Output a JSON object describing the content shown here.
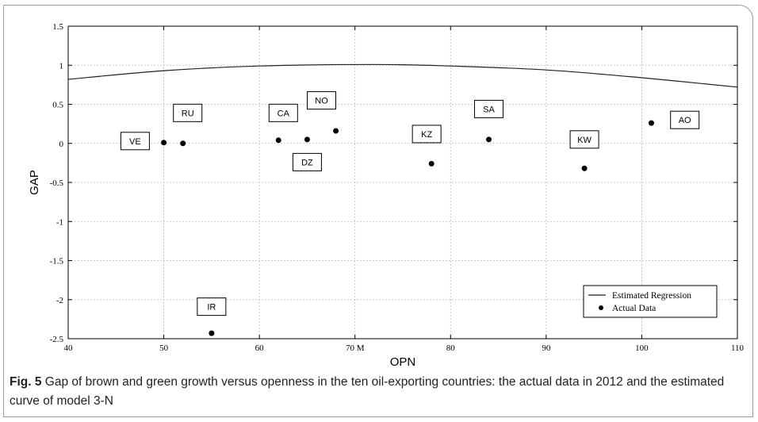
{
  "chart_data": {
    "type": "scatter",
    "xlabel": "OPN",
    "ylabel": "GAP",
    "xlim": [
      40,
      110
    ],
    "ylim": [
      -2.5,
      1.5
    ],
    "x_ticks": [
      40,
      50,
      60,
      70,
      80,
      90,
      100,
      110
    ],
    "y_ticks": [
      1.5,
      1,
      0.5,
      0,
      -0.5,
      -1,
      -1.5,
      -2,
      -2.5
    ],
    "x_tick_labels": [
      "40",
      "50",
      "60",
      "70 M",
      "80",
      "90",
      "100",
      "110"
    ],
    "y_tick_labels": [
      "1.5",
      "1",
      "0.5",
      "0",
      "-0.5",
      "-1",
      "-1.5",
      "-2",
      "-2.5"
    ],
    "grid": true,
    "legend": {
      "placement": "bottom-right",
      "entries": [
        "Estimated Regression",
        "Actual Data"
      ]
    },
    "series": [
      {
        "name": "Estimated Regression",
        "style": "line",
        "x": [
          40,
          50,
          60,
          72,
          80,
          90,
          100,
          110
        ],
        "y": [
          0.82,
          0.93,
          0.99,
          1.01,
          0.99,
          0.94,
          0.84,
          0.72
        ]
      },
      {
        "name": "Actual Data",
        "style": "points",
        "points": [
          {
            "label": "VE",
            "x": 50,
            "y": 0.01,
            "label_x": 47,
            "label_y": 0.03
          },
          {
            "label": "RU",
            "x": 52,
            "y": 0.0,
            "label_x": 52.5,
            "label_y": 0.39
          },
          {
            "label": "IR",
            "x": 55,
            "y": -2.43,
            "label_x": 55,
            "label_y": -2.09
          },
          {
            "label": "CA",
            "x": 62,
            "y": 0.04,
            "label_x": 62.5,
            "label_y": 0.39
          },
          {
            "label": "DZ",
            "x": 65,
            "y": 0.05,
            "label_x": 65,
            "label_y": -0.24
          },
          {
            "label": "NO",
            "x": 68,
            "y": 0.16,
            "label_x": 66.5,
            "label_y": 0.55
          },
          {
            "label": "KZ",
            "x": 78,
            "y": -0.26,
            "label_x": 77.5,
            "label_y": 0.12
          },
          {
            "label": "SA",
            "x": 84,
            "y": 0.05,
            "label_x": 84,
            "label_y": 0.44
          },
          {
            "label": "KW",
            "x": 94,
            "y": -0.32,
            "label_x": 94,
            "label_y": 0.05
          },
          {
            "label": "AO",
            "x": 101,
            "y": 0.26,
            "label_x": 104.5,
            "label_y": 0.3
          }
        ]
      }
    ]
  },
  "caption": {
    "label": "Fig. 5",
    "text": "Gap of brown and green growth versus openness in the ten oil-exporting countries: the actual data in 2012 and the estimated curve of model 3-N"
  },
  "colors": {
    "axis": "#000000",
    "grid": "#a8a8a8",
    "line": "#222222",
    "points": "#000000"
  }
}
